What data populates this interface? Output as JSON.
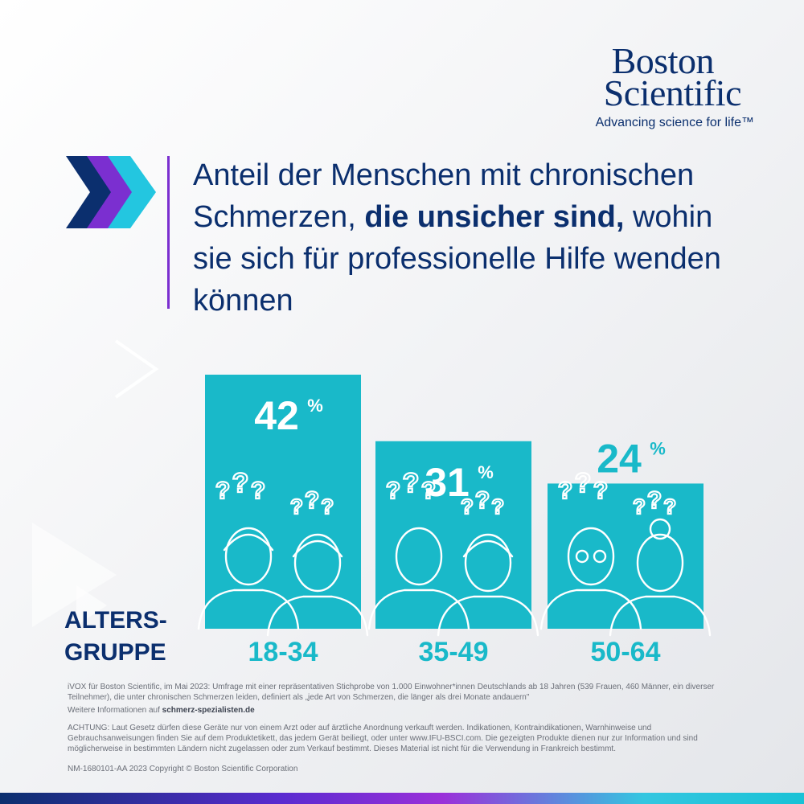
{
  "brand": {
    "line1": "Boston",
    "line2": "Scientific",
    "tagline": "Advancing science for life™"
  },
  "colors": {
    "navy": "#0b2f6e",
    "teal": "#19b9c9",
    "purple": "#7b2fd0",
    "cyan": "#23c6e0"
  },
  "heading": {
    "part1": "Anteil der Menschen mit chronischen Schmerzen, ",
    "bold": "die unsicher sind,",
    "part2": " wohin sie sich für professionelle Hilfe wenden können"
  },
  "axis_label": {
    "line1": "ALTERS-",
    "line2": "GRUPPE"
  },
  "chart_data": {
    "type": "bar",
    "categories": [
      "18-34",
      "35-49",
      "50-64"
    ],
    "values": [
      42,
      31,
      24
    ],
    "value_labels": [
      "42",
      "31",
      "24"
    ],
    "unit": "%",
    "ylim": [
      0,
      42
    ],
    "grid": false,
    "legend": "none"
  },
  "footer": {
    "source": "iVOX für Boston Scientific, im Mai 2023: Umfrage mit einer repräsentativen Stichprobe von 1.000 Einwohner*innen Deutschlands ab 18 Jahren (539 Frauen, 460 Männer, ein diverser Teilnehmer), die unter chronischen Schmerzen leiden, definiert als „jede Art von Schmerzen, die länger als drei Monate andauern\"",
    "more_info_prefix": "Weitere Informationen auf ",
    "more_info_link": "schmerz-spezialisten.de",
    "warning": "ACHTUNG: Laut Gesetz dürfen diese Geräte nur von einem Arzt oder auf ärztliche Anordnung verkauft werden. Indikationen, Kontraindikationen, Warnhinweise und Gebrauchsanweisungen finden Sie auf dem Produktetikett, das jedem Gerät beiliegt, oder unter www.IFU-BSCI.com. Die gezeigten Produkte dienen nur zur Information und sind möglicherweise in bestimmten Ländern nicht zugelassen oder zum Verkauf bestimmt. Dieses Material ist nicht für die Verwendung in Frankreich bestimmt.",
    "copyright": "NM-1680101-AA 2023  Copyright © Boston Scientific Corporation"
  }
}
